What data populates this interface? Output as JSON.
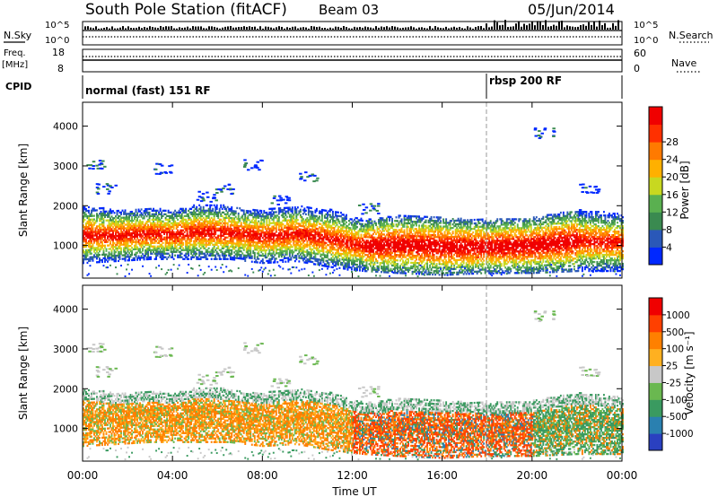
{
  "header": {
    "station": "South Pole Station (fitACF)",
    "beam": "Beam 03",
    "date": "05/Jun/2014"
  },
  "nsky_panel": {
    "left_label": "N.Sky",
    "right_label": "N.Search",
    "left_ticks": [
      "10^5",
      "10^0"
    ],
    "right_ticks": [
      "10^5",
      "10^0"
    ]
  },
  "freq_panel": {
    "left_label_1": "Freq.",
    "left_label_2": "[MHz]",
    "right_label": "Nave",
    "left_ticks": [
      "18",
      "8"
    ],
    "right_ticks": [
      "60",
      "0"
    ]
  },
  "cpid": {
    "label": "CPID",
    "modes": [
      {
        "name": "normal (fast) 151 RF",
        "start_h": 0
      },
      {
        "name": "rbsp 200 RF",
        "start_h": 18
      }
    ]
  },
  "chart_data": [
    {
      "type": "heatmap",
      "panel": "power",
      "ylabel": "Slant Range [km]",
      "xlabel": "Time UT",
      "x_ticks": [
        "00:00",
        "04:00",
        "08:00",
        "12:00",
        "16:00",
        "20:00",
        "00:00"
      ],
      "y_ticks": [
        1000,
        2000,
        3000,
        4000
      ],
      "xlim_hours": [
        0,
        24
      ],
      "ylim_km": [
        180,
        4600
      ],
      "colorbar": {
        "label": "Power [dB]",
        "ticks": [
          "4",
          "8",
          "12",
          "16",
          "20",
          "24",
          "28"
        ],
        "colors": [
          "#0028ff",
          "#2a58b8",
          "#3a8a50",
          "#5ab050",
          "#c8d820",
          "#ffb000",
          "#ff7a00",
          "#ff3000",
          "#f00000"
        ]
      },
      "echo_band": [
        {
          "h": 0,
          "low": 800,
          "high": 1700
        },
        {
          "h": 1.5,
          "low": 850,
          "high": 1600
        },
        {
          "h": 3,
          "low": 900,
          "high": 1650
        },
        {
          "h": 4,
          "low": 900,
          "high": 1600
        },
        {
          "h": 5,
          "low": 900,
          "high": 1750
        },
        {
          "h": 6.5,
          "low": 900,
          "high": 1700
        },
        {
          "h": 8,
          "low": 800,
          "high": 1600
        },
        {
          "h": 9.5,
          "low": 850,
          "high": 1700
        },
        {
          "h": 11,
          "low": 700,
          "high": 1600
        },
        {
          "h": 12.5,
          "low": 600,
          "high": 1350
        },
        {
          "h": 14,
          "low": 550,
          "high": 1450
        },
        {
          "h": 16,
          "low": 500,
          "high": 1400
        },
        {
          "h": 18,
          "low": 550,
          "high": 1350
        },
        {
          "h": 20,
          "low": 550,
          "high": 1400
        },
        {
          "h": 22,
          "low": 600,
          "high": 1600
        },
        {
          "h": 24,
          "low": 600,
          "high": 1500
        }
      ]
    },
    {
      "type": "heatmap",
      "panel": "velocity",
      "ylabel": "Slant Range [km]",
      "xlabel": "Time UT",
      "x_ticks": [
        "00:00",
        "04:00",
        "08:00",
        "12:00",
        "16:00",
        "20:00",
        "00:00"
      ],
      "y_ticks": [
        1000,
        2000,
        3000,
        4000
      ],
      "xlim_hours": [
        0,
        24
      ],
      "ylim_km": [
        180,
        4600
      ],
      "colorbar": {
        "label": "Velocity [m s⁻¹]",
        "ticks": [
          "1000",
          "500",
          "100",
          "25",
          "-25",
          "-100",
          "-500",
          "-1000"
        ],
        "colors": [
          "#2a40c0",
          "#2a80b0",
          "#3a9a60",
          "#6ab850",
          "#c8c8c8",
          "#ffb020",
          "#ff8000",
          "#ff4000",
          "#f00000"
        ]
      }
    }
  ]
}
